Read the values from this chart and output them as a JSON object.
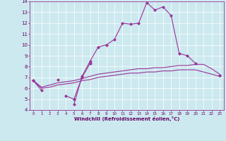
{
  "xlabel": "Windchill (Refroidissement éolien,°C)",
  "ylabel": "",
  "xlim": [
    -0.5,
    23.5
  ],
  "ylim": [
    4,
    14
  ],
  "xticks": [
    0,
    1,
    2,
    3,
    4,
    5,
    6,
    7,
    8,
    9,
    10,
    11,
    12,
    13,
    14,
    15,
    16,
    17,
    18,
    19,
    20,
    21,
    22,
    23
  ],
  "yticks": [
    4,
    5,
    6,
    7,
    8,
    9,
    10,
    11,
    12,
    13,
    14
  ],
  "background_color": "#cce9ef",
  "grid_color": "#b0d0d8",
  "line_color": "#993399",
  "lines": [
    {
      "x": [
        0,
        1,
        2,
        3,
        4,
        5,
        6,
        7,
        8,
        9,
        10,
        11,
        12,
        13,
        14,
        15,
        16,
        17,
        18,
        19,
        20,
        21,
        22,
        23
      ],
      "y": [
        6.7,
        5.8,
        null,
        6.8,
        null,
        4.5,
        7.1,
        8.5,
        9.8,
        10.0,
        10.5,
        12.0,
        11.9,
        12.0,
        13.9,
        13.2,
        13.5,
        12.7,
        9.2,
        9.0,
        8.3,
        null,
        null,
        7.2
      ],
      "marker": "D",
      "markersize": 2.0,
      "linewidth": 0.8
    },
    {
      "x": [
        0,
        1,
        2,
        3,
        4,
        5,
        6,
        7,
        8,
        9,
        10,
        11,
        12,
        13,
        14,
        15,
        16,
        17,
        18,
        19,
        20,
        21,
        22,
        23
      ],
      "y": [
        6.7,
        null,
        null,
        null,
        5.3,
        5.0,
        7.0,
        8.3,
        null,
        null,
        null,
        null,
        null,
        null,
        null,
        null,
        null,
        null,
        null,
        null,
        null,
        null,
        null,
        7.2
      ],
      "marker": "D",
      "markersize": 2.0,
      "linewidth": 0.8
    },
    {
      "x": [
        0,
        1,
        2,
        3,
        4,
        5,
        6,
        7,
        8,
        9,
        10,
        11,
        12,
        13,
        14,
        15,
        16,
        17,
        18,
        19,
        20,
        21,
        22,
        23
      ],
      "y": [
        6.7,
        6.1,
        6.3,
        6.5,
        6.6,
        6.7,
        6.9,
        7.1,
        7.3,
        7.4,
        7.5,
        7.6,
        7.7,
        7.8,
        7.8,
        7.9,
        7.9,
        8.0,
        8.1,
        8.1,
        8.2,
        8.2,
        7.8,
        7.3
      ],
      "marker": null,
      "markersize": 0,
      "linewidth": 0.8
    },
    {
      "x": [
        0,
        1,
        2,
        3,
        4,
        5,
        6,
        7,
        8,
        9,
        10,
        11,
        12,
        13,
        14,
        15,
        16,
        17,
        18,
        19,
        20,
        21,
        22,
        23
      ],
      "y": [
        6.7,
        6.0,
        6.1,
        6.3,
        6.4,
        6.5,
        6.7,
        6.8,
        7.0,
        7.1,
        7.2,
        7.3,
        7.4,
        7.4,
        7.5,
        7.5,
        7.6,
        7.6,
        7.7,
        7.7,
        7.7,
        7.5,
        7.3,
        7.1
      ],
      "marker": null,
      "markersize": 0,
      "linewidth": 0.8
    }
  ]
}
